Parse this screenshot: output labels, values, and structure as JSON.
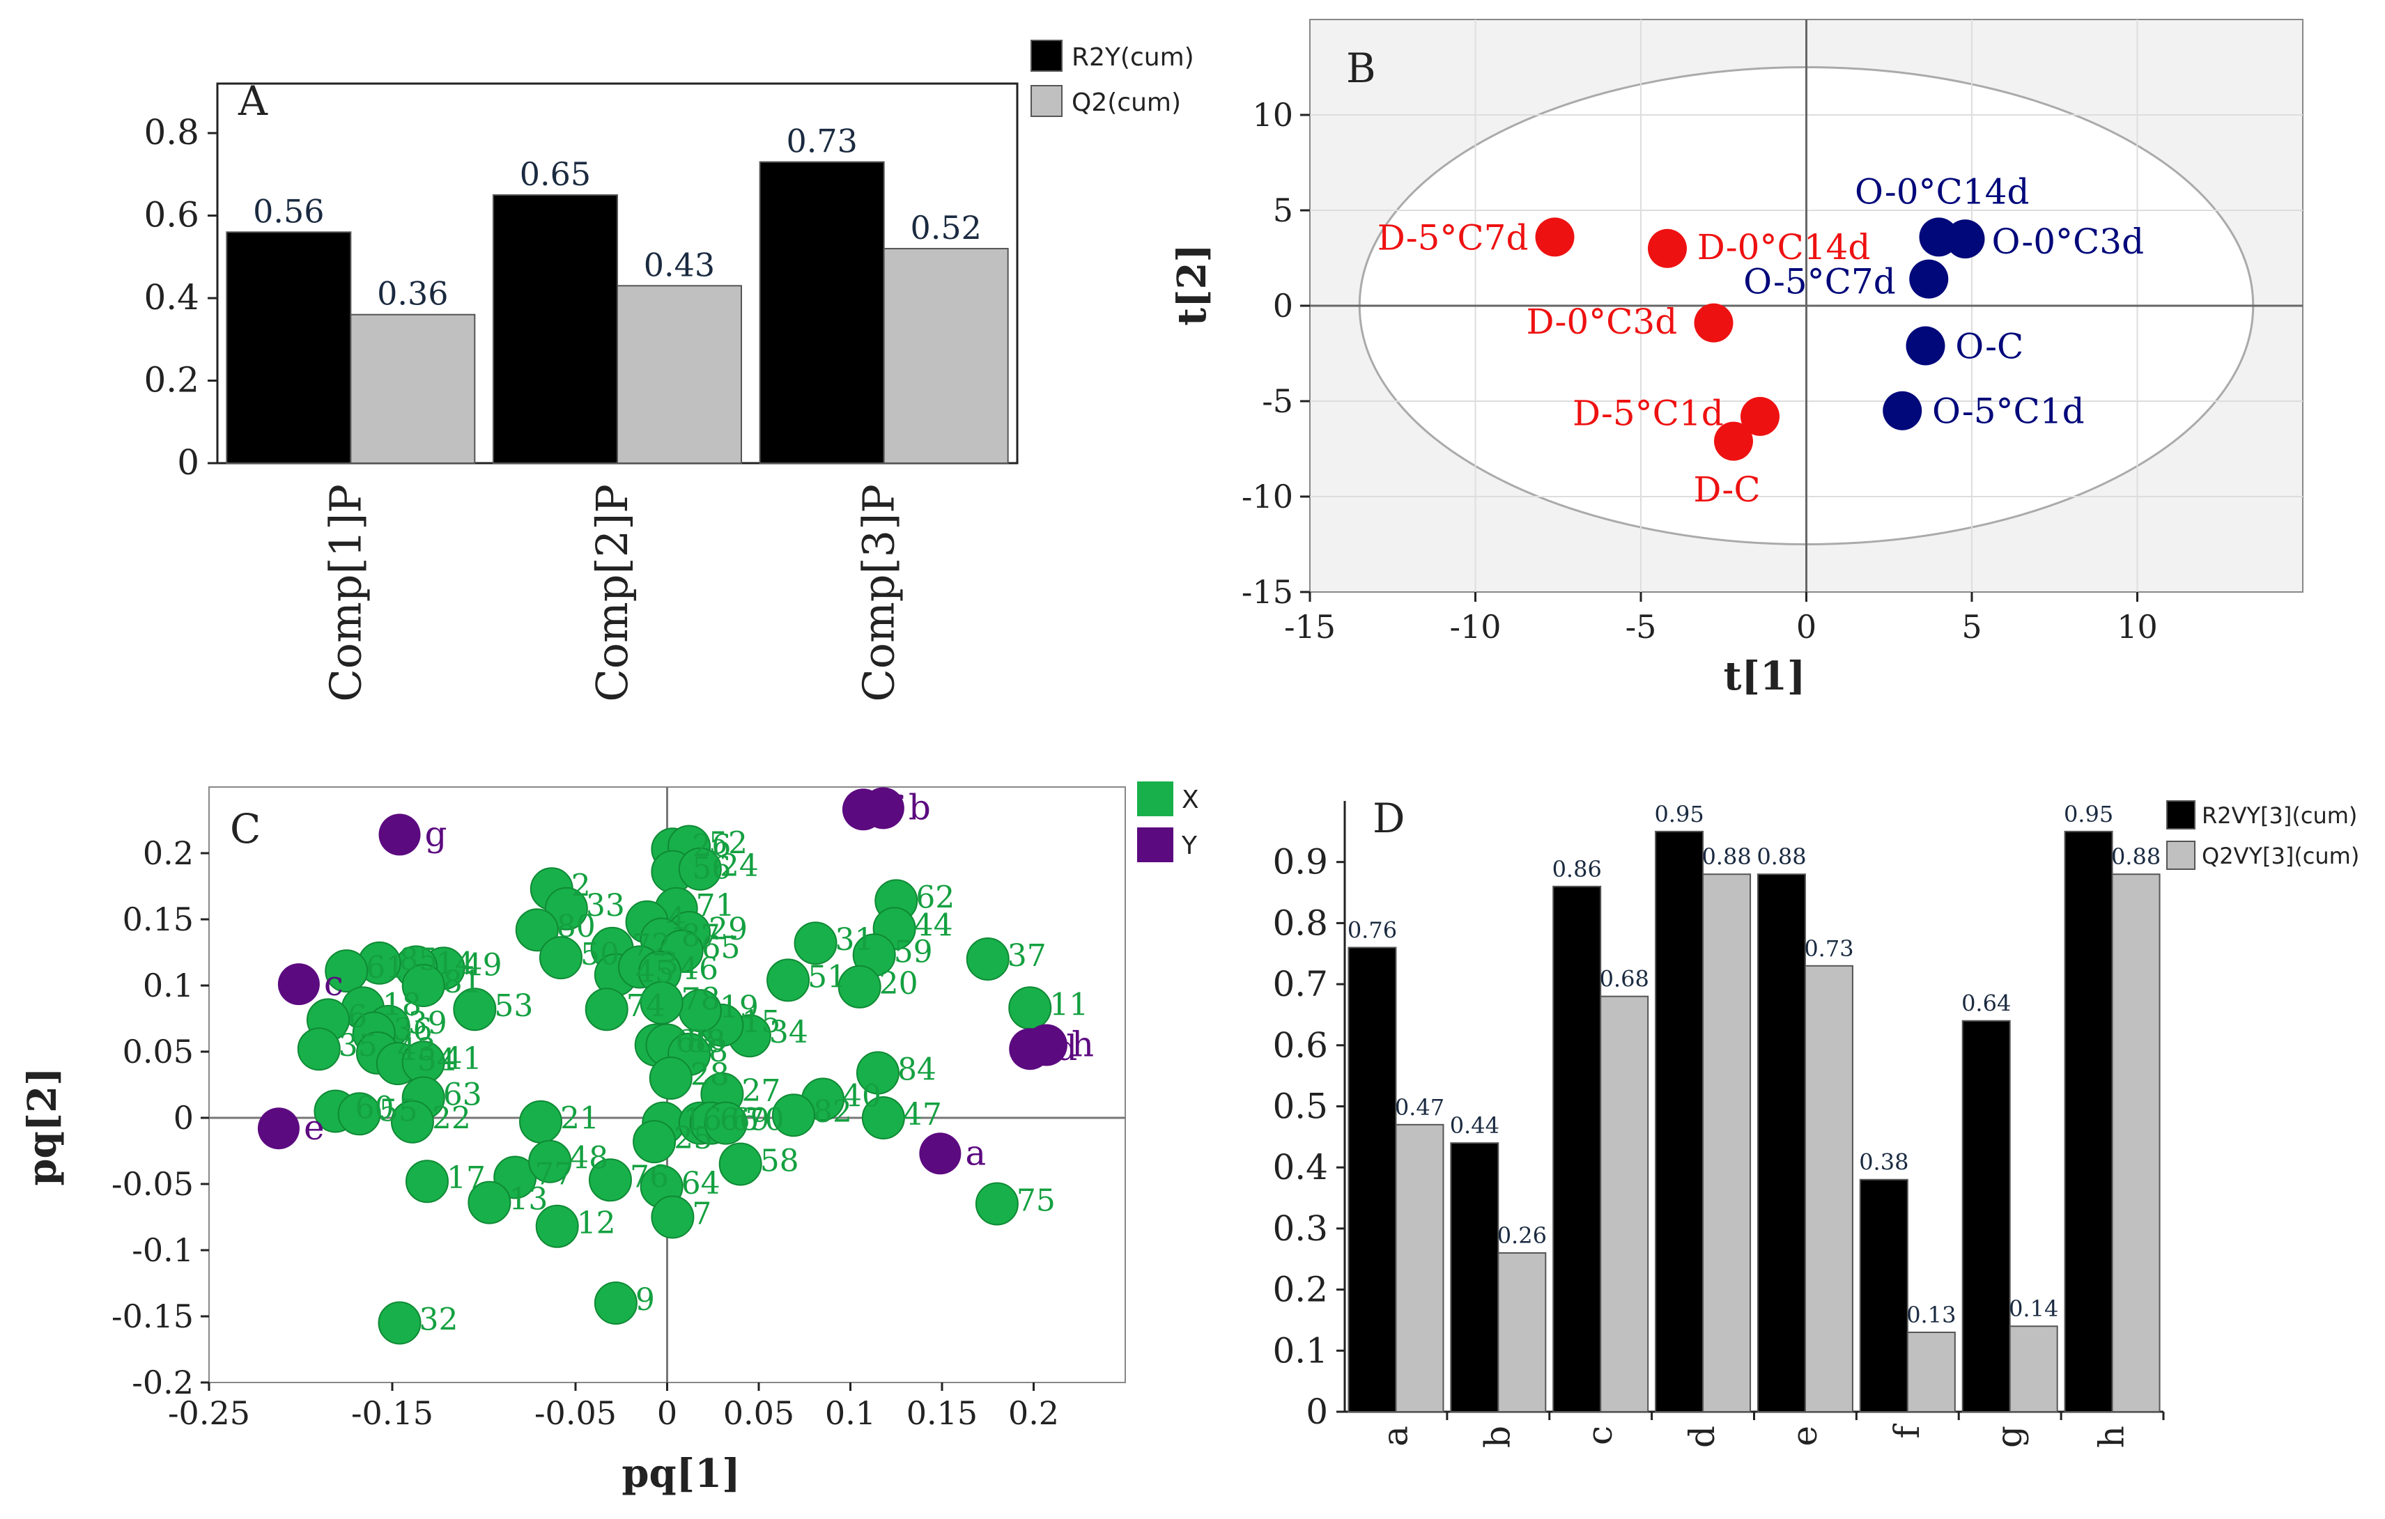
{
  "figure": {
    "colors": {
      "black": "#000000",
      "gray": "#c0c0c0",
      "red": "#ee1111",
      "navy": "#00087a",
      "green": "#18b04a",
      "purple": "#5c0a80",
      "panel_bg": "#f2f2f2",
      "axis": "#222222"
    }
  },
  "chart_data": [
    {
      "id": "A",
      "type": "bar",
      "panel_label": "A",
      "categories": [
        "Comp[1]P",
        "Comp[2]P",
        "Comp[3]P"
      ],
      "series": [
        {
          "name": "R2Y(cum)",
          "values": [
            0.56,
            0.65,
            0.73
          ],
          "labels": [
            "0.56",
            "0.65",
            "0.73"
          ],
          "color": "#000000"
        },
        {
          "name": "Q2(cum)",
          "values": [
            0.36,
            0.43,
            0.52
          ],
          "labels": [
            "0.36",
            "0.43",
            "0.52"
          ],
          "color": "#c0c0c0"
        }
      ],
      "yticks": [
        0,
        0.2,
        0.4,
        0.6,
        0.8
      ],
      "ytick_labels": [
        "0",
        "0.2",
        "0.4",
        "0.6",
        "0.8"
      ],
      "ylim": [
        0,
        0.92
      ],
      "legend": "top-right",
      "xlabel": "",
      "ylabel": ""
    },
    {
      "id": "B",
      "type": "scatter",
      "panel_label": "B",
      "xlabel": "t[1]",
      "ylabel": "t[2]",
      "xlim": [
        -15,
        15
      ],
      "ylim": [
        -15,
        15
      ],
      "xticks": [
        -15,
        -10,
        -5,
        0,
        5,
        10
      ],
      "xtick_labels": [
        "-15",
        "-10",
        "-5",
        "0",
        "5",
        "10"
      ],
      "yticks": [
        -15,
        -10,
        -5,
        0,
        5,
        10
      ],
      "ytick_labels": [
        "-15",
        "-10",
        "-5",
        "0",
        "5",
        "10"
      ],
      "ellipse": {
        "cx": 0,
        "cy": 0,
        "rx": 13.5,
        "ry": 12.5
      },
      "points": [
        {
          "label": "D-5°C7d",
          "x": -7.6,
          "y": 3.6,
          "group": "D",
          "lx": -8.4,
          "ly": 3.6,
          "anchor": "end"
        },
        {
          "label": "D-0°C14d",
          "x": -4.2,
          "y": 3.0,
          "group": "D",
          "lx": -3.3,
          "ly": 3.1,
          "anchor": "start"
        },
        {
          "label": "D-0°C3d",
          "x": -2.8,
          "y": -0.9,
          "group": "D",
          "lx": -3.9,
          "ly": -0.8,
          "anchor": "end"
        },
        {
          "label": "D-5°C1d",
          "x": -1.4,
          "y": -5.8,
          "group": "D",
          "lx": -2.5,
          "ly": -5.6,
          "anchor": "end"
        },
        {
          "label": "D-C",
          "x": -2.2,
          "y": -7.1,
          "group": "D",
          "lx": -2.4,
          "ly": -9.6,
          "anchor": "middle"
        },
        {
          "label": "O-0°C14d",
          "x": 4.0,
          "y": 3.6,
          "group": "O",
          "lx": 4.1,
          "ly": 6.0,
          "anchor": "middle"
        },
        {
          "label": "O-0°C3d",
          "x": 4.8,
          "y": 3.5,
          "group": "O",
          "lx": 5.6,
          "ly": 3.4,
          "anchor": "start"
        },
        {
          "label": "O-5°C7d",
          "x": 3.7,
          "y": 1.4,
          "group": "O",
          "lx": 2.7,
          "ly": 1.3,
          "anchor": "end"
        },
        {
          "label": "O-C",
          "x": 3.6,
          "y": -2.1,
          "group": "O",
          "lx": 4.5,
          "ly": -2.1,
          "anchor": "start"
        },
        {
          "label": "O-5°C1d",
          "x": 2.9,
          "y": -5.5,
          "group": "O",
          "lx": 3.8,
          "ly": -5.5,
          "anchor": "start"
        }
      ]
    },
    {
      "id": "C",
      "type": "scatter",
      "panel_label": "C",
      "xlabel": "pq[1]",
      "ylabel": "pq[2]",
      "xlim": [
        -0.25,
        0.25
      ],
      "ylim": [
        -0.2,
        0.25
      ],
      "xticks": [
        -0.25,
        -0.15,
        -0.05,
        0,
        0.05,
        0.1,
        0.15,
        0.2
      ],
      "xtick_labels": [
        "-0.25",
        "-0.15",
        "-0.05",
        "0",
        "0.05",
        "0.1",
        "0.15",
        "0.2"
      ],
      "yticks": [
        -0.2,
        -0.15,
        -0.1,
        -0.05,
        0,
        0.05,
        0.1,
        0.15,
        0.2
      ],
      "ytick_labels": [
        "-0.2",
        "-0.15",
        "-0.1",
        "-0.05",
        "0",
        "0.05",
        "0.1",
        "0.15",
        "0.2"
      ],
      "legend": "top-right",
      "legend_entries": [
        {
          "name": "X",
          "color": "#18b04a"
        },
        {
          "name": "Y",
          "color": "#5c0a80"
        }
      ],
      "x_points": [
        {
          "label": "26",
          "x": 0.003,
          "y": 0.203
        },
        {
          "label": "52",
          "x": 0.012,
          "y": 0.205
        },
        {
          "label": "56",
          "x": 0.003,
          "y": 0.186
        },
        {
          "label": "24",
          "x": 0.018,
          "y": 0.188
        },
        {
          "label": "71",
          "x": 0.005,
          "y": 0.158
        },
        {
          "label": "29",
          "x": 0.012,
          "y": 0.14
        },
        {
          "label": "2",
          "x": -0.063,
          "y": 0.173
        },
        {
          "label": "33",
          "x": -0.055,
          "y": 0.158
        },
        {
          "label": "80",
          "x": -0.071,
          "y": 0.142
        },
        {
          "label": "50",
          "x": -0.058,
          "y": 0.121
        },
        {
          "label": "72",
          "x": -0.03,
          "y": 0.128
        },
        {
          "label": "4",
          "x": -0.011,
          "y": 0.148
        },
        {
          "label": "87",
          "x": -0.003,
          "y": 0.135
        },
        {
          "label": "65",
          "x": 0.008,
          "y": 0.126
        },
        {
          "label": "45",
          "x": -0.028,
          "y": 0.108
        },
        {
          "label": "3",
          "x": -0.015,
          "y": 0.114
        },
        {
          "label": "46",
          "x": -0.004,
          "y": 0.11
        },
        {
          "label": "62",
          "x": 0.125,
          "y": 0.164
        },
        {
          "label": "44",
          "x": 0.124,
          "y": 0.143
        },
        {
          "label": "31",
          "x": 0.081,
          "y": 0.132
        },
        {
          "label": "59",
          "x": 0.113,
          "y": 0.123
        },
        {
          "label": "20",
          "x": 0.105,
          "y": 0.099
        },
        {
          "label": "51",
          "x": 0.066,
          "y": 0.104
        },
        {
          "label": "37",
          "x": 0.175,
          "y": 0.12
        },
        {
          "label": "11",
          "x": 0.198,
          "y": 0.083
        },
        {
          "label": "84",
          "x": 0.115,
          "y": 0.034
        },
        {
          "label": "47",
          "x": 0.118,
          "y": 0.0
        },
        {
          "label": "40",
          "x": 0.085,
          "y": 0.014
        },
        {
          "label": "82",
          "x": 0.069,
          "y": 0.002
        },
        {
          "label": "34",
          "x": 0.045,
          "y": 0.062
        },
        {
          "label": "15",
          "x": 0.03,
          "y": 0.07
        },
        {
          "label": "19",
          "x": 0.018,
          "y": 0.081
        },
        {
          "label": "78",
          "x": -0.003,
          "y": 0.087
        },
        {
          "label": "68",
          "x": -0.006,
          "y": 0.055
        },
        {
          "label": "88",
          "x": 0.0,
          "y": 0.055
        },
        {
          "label": "8",
          "x": 0.012,
          "y": 0.048
        },
        {
          "label": "28",
          "x": 0.002,
          "y": 0.03
        },
        {
          "label": "27",
          "x": 0.03,
          "y": 0.018
        },
        {
          "label": "74",
          "x": -0.033,
          "y": 0.082
        },
        {
          "label": "53",
          "x": -0.105,
          "y": 0.082
        },
        {
          "label": "49",
          "x": -0.122,
          "y": 0.113
        },
        {
          "label": "14",
          "x": -0.137,
          "y": 0.114
        },
        {
          "label": "81",
          "x": -0.133,
          "y": 0.1
        },
        {
          "label": "85",
          "x": -0.157,
          "y": 0.117
        },
        {
          "label": "61",
          "x": -0.175,
          "y": 0.111
        },
        {
          "label": "18",
          "x": -0.166,
          "y": 0.083
        },
        {
          "label": "39",
          "x": -0.152,
          "y": 0.069
        },
        {
          "label": "36",
          "x": -0.16,
          "y": 0.064
        },
        {
          "label": "6",
          "x": -0.185,
          "y": 0.074
        },
        {
          "label": "35",
          "x": -0.19,
          "y": 0.052
        },
        {
          "label": "43",
          "x": -0.158,
          "y": 0.049
        },
        {
          "label": "54",
          "x": -0.147,
          "y": 0.041
        },
        {
          "label": "41",
          "x": -0.133,
          "y": 0.042
        },
        {
          "label": "63",
          "x": -0.133,
          "y": 0.015
        },
        {
          "label": "60",
          "x": -0.181,
          "y": 0.005
        },
        {
          "label": "55",
          "x": -0.168,
          "y": 0.003
        },
        {
          "label": "22",
          "x": -0.139,
          "y": -0.003
        },
        {
          "label": "21",
          "x": -0.069,
          "y": -0.003
        },
        {
          "label": "77",
          "x": -0.083,
          "y": -0.045
        },
        {
          "label": "17",
          "x": -0.131,
          "y": -0.048
        },
        {
          "label": "13",
          "x": -0.097,
          "y": -0.064
        },
        {
          "label": "48",
          "x": -0.064,
          "y": -0.033
        },
        {
          "label": "76",
          "x": -0.031,
          "y": -0.047
        },
        {
          "label": "12",
          "x": -0.06,
          "y": -0.082
        },
        {
          "label": "16",
          "x": -0.002,
          "y": -0.004
        },
        {
          "label": "25",
          "x": -0.007,
          "y": -0.018
        },
        {
          "label": "64",
          "x": -0.003,
          "y": -0.052
        },
        {
          "label": "7",
          "x": 0.003,
          "y": -0.075
        },
        {
          "label": "58",
          "x": 0.04,
          "y": -0.035
        },
        {
          "label": "9",
          "x": -0.028,
          "y": -0.14
        },
        {
          "label": "32",
          "x": -0.146,
          "y": -0.155
        },
        {
          "label": "75",
          "x": 0.18,
          "y": -0.065
        },
        {
          "label": "66",
          "x": 0.018,
          "y": -0.004
        },
        {
          "label": "69",
          "x": 0.024,
          "y": -0.004
        },
        {
          "label": "70",
          "x": 0.032,
          "y": -0.004
        }
      ],
      "y_points": [
        {
          "label": "g",
          "x": -0.146,
          "y": 0.214
        },
        {
          "label": "f",
          "x": 0.107,
          "y": 0.233
        },
        {
          "label": "b",
          "x": 0.118,
          "y": 0.234
        },
        {
          "label": "c",
          "x": -0.201,
          "y": 0.101
        },
        {
          "label": "d",
          "x": 0.198,
          "y": 0.052
        },
        {
          "label": "h",
          "x": 0.207,
          "y": 0.055
        },
        {
          "label": "e",
          "x": -0.212,
          "y": -0.008
        },
        {
          "label": "a",
          "x": 0.149,
          "y": -0.027
        }
      ]
    },
    {
      "id": "D",
      "type": "bar",
      "panel_label": "D",
      "categories": [
        "a",
        "b",
        "c",
        "d",
        "e",
        "f",
        "g",
        "h"
      ],
      "series": [
        {
          "name": "R2VY[3](cum)",
          "values": [
            0.76,
            0.44,
            0.86,
            0.95,
            0.88,
            0.38,
            0.64,
            0.95
          ],
          "labels": [
            "0.76",
            "0.44",
            "0.86",
            "0.95",
            "0.88",
            "0.38",
            "0.64",
            "0.95"
          ],
          "color": "#000000"
        },
        {
          "name": "Q2VY[3](cum)",
          "values": [
            0.47,
            0.26,
            0.68,
            0.88,
            0.73,
            0.13,
            0.14,
            0.88
          ],
          "labels": [
            "0.47",
            "0.26",
            "0.68",
            "0.88",
            "0.73",
            "0.13",
            "0.14",
            "0.88"
          ],
          "color": "#c0c0c0"
        }
      ],
      "yticks": [
        0,
        0.1,
        0.2,
        0.3,
        0.4,
        0.5,
        0.6,
        0.7,
        0.8,
        0.9
      ],
      "ytick_labels": [
        "0",
        "0.1",
        "0.2",
        "0.3",
        "0.4",
        "0.5",
        "0.6",
        "0.7",
        "0.8",
        "0.9"
      ],
      "ylim": [
        0,
        1.0
      ],
      "legend": "top-right",
      "xlabel": "",
      "ylabel": ""
    }
  ]
}
